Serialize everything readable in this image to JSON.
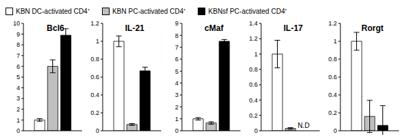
{
  "chart_data": [
    {
      "type": "bar",
      "title": "Bcl6",
      "categories": [
        null
      ],
      "ylim": [
        0,
        10
      ],
      "yticks": [
        0,
        1,
        2,
        3,
        4,
        5,
        6,
        7,
        8,
        9,
        10
      ],
      "grid": false,
      "tick_labels": "y",
      "series": [
        {
          "name": "KBN DC-activated CD4⁺",
          "color": "#ffffff",
          "values": [
            1.0
          ],
          "errors": [
            0.12
          ]
        },
        {
          "name": "KBN PC-activated CD4⁺",
          "color": "#bfbfbf",
          "values": [
            6.0
          ],
          "errors": [
            0.6
          ]
        },
        {
          "name": "KBNsf PC-activated CD4⁺",
          "color": "#000000",
          "values": [
            8.9
          ],
          "errors": [
            0.6
          ]
        }
      ]
    },
    {
      "type": "bar",
      "title": "IL-21",
      "categories": [
        null
      ],
      "ylim": [
        0,
        1.2
      ],
      "yticks": [
        0,
        0.2,
        0.4,
        0.6,
        0.8,
        1,
        1.2
      ],
      "grid": false,
      "tick_labels": "y",
      "series": [
        {
          "name": "KBN DC-activated CD4⁺",
          "color": "#ffffff",
          "values": [
            1.0
          ],
          "errors": [
            0.06
          ]
        },
        {
          "name": "KBN PC-activated CD4⁺",
          "color": "#bfbfbf",
          "values": [
            0.07
          ],
          "errors": [
            0.01
          ]
        },
        {
          "name": "KBNsf PC-activated CD4⁺",
          "color": "#000000",
          "values": [
            0.67
          ],
          "errors": [
            0.04
          ]
        }
      ]
    },
    {
      "type": "bar",
      "title": "cMaf",
      "categories": [
        null
      ],
      "ylim": [
        0,
        9
      ],
      "yticks": [
        0,
        1,
        2,
        3,
        4,
        5,
        6,
        7,
        8,
        9
      ],
      "grid": false,
      "tick_labels": "y",
      "series": [
        {
          "name": "KBN DC-activated CD4⁺",
          "color": "#ffffff",
          "values": [
            1.0
          ],
          "errors": [
            0.1
          ]
        },
        {
          "name": "KBN PC-activated CD4⁺",
          "color": "#bfbfbf",
          "values": [
            0.65
          ],
          "errors": [
            0.1
          ]
        },
        {
          "name": "KBNsf PC-activated CD4⁺",
          "color": "#000000",
          "values": [
            7.5
          ],
          "errors": [
            0.15
          ]
        }
      ]
    },
    {
      "type": "bar",
      "title": "IL-17",
      "categories": [
        null
      ],
      "ylim": [
        0,
        1.4
      ],
      "yticks": [
        0,
        0.2,
        0.4,
        0.6,
        0.8,
        1,
        1.2,
        1.4
      ],
      "grid": false,
      "tick_labels": "y",
      "series": [
        {
          "name": "KBN DC-activated CD4⁺",
          "color": "#ffffff",
          "values": [
            1.0
          ],
          "errors": [
            0.18
          ]
        },
        {
          "name": "KBN PC-activated CD4⁺",
          "color": "#bfbfbf",
          "values": [
            0.03
          ],
          "errors": [
            0.01
          ]
        },
        {
          "name": "KBNsf PC-activated CD4⁺",
          "color": "#000000",
          "values": [
            null
          ],
          "value_labels": [
            "N.D"
          ]
        }
      ]
    },
    {
      "type": "bar",
      "title": "Rorgt",
      "categories": [
        null
      ],
      "ylim": [
        0,
        1.2
      ],
      "yticks": [
        0,
        0.2,
        0.4,
        0.6,
        0.8,
        1,
        1.2
      ],
      "grid": false,
      "tick_labels": "y",
      "series": [
        {
          "name": "KBN DC-activated CD4⁺",
          "color": "#ffffff",
          "values": [
            1.0
          ],
          "errors": [
            0.1
          ]
        },
        {
          "name": "KBN PC-activated CD4⁺",
          "color": "#bfbfbf",
          "values": [
            0.16
          ],
          "errors": [
            0.18
          ]
        },
        {
          "name": "KBNsf PC-activated CD4⁺",
          "color": "#000000",
          "values": [
            0.06
          ],
          "errors": [
            0.22
          ]
        }
      ]
    }
  ]
}
